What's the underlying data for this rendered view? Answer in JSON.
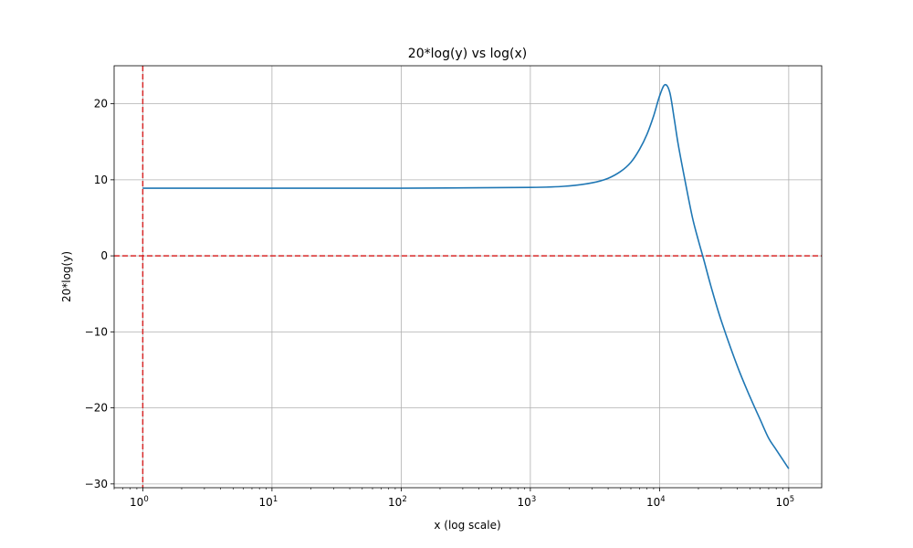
{
  "chart_data": {
    "type": "line",
    "title": "20*log(y) vs log(x)",
    "xlabel": "x (log scale)",
    "ylabel": "20*log(y)",
    "x_scale": "log",
    "xlim": [
      0.6,
      180000
    ],
    "ylim": [
      -30.5,
      25
    ],
    "x_ticks": [
      {
        "value": 1,
        "base": "10",
        "exp": "0"
      },
      {
        "value": 10,
        "base": "10",
        "exp": "1"
      },
      {
        "value": 100,
        "base": "10",
        "exp": "2"
      },
      {
        "value": 1000,
        "base": "10",
        "exp": "3"
      },
      {
        "value": 10000,
        "base": "10",
        "exp": "4"
      },
      {
        "value": 100000,
        "base": "10",
        "exp": "5"
      }
    ],
    "y_ticks": [
      {
        "value": 20,
        "label": "20"
      },
      {
        "value": 10,
        "label": "10"
      },
      {
        "value": 0,
        "label": "0"
      },
      {
        "value": -10,
        "label": "−10"
      },
      {
        "value": -20,
        "label": "−20"
      },
      {
        "value": -30,
        "label": "−30"
      }
    ],
    "grid": true,
    "reference_lines": [
      {
        "orientation": "vertical",
        "x": 1,
        "color": "#d62728",
        "style": "dashed"
      },
      {
        "orientation": "horizontal",
        "y": 0,
        "color": "#d62728",
        "style": "dashed"
      }
    ],
    "series": [
      {
        "color": "#1f77b4",
        "x": [
          1,
          10,
          100,
          1000,
          2000,
          3000,
          4000,
          5000,
          6000,
          7000,
          8000,
          9000,
          10000,
          11000,
          12000,
          13000,
          14000,
          16000,
          18000,
          20000,
          22000,
          25000,
          30000,
          40000,
          50000,
          60000,
          70000,
          80000,
          100000
        ],
        "y": [
          8.9,
          8.9,
          8.9,
          9.0,
          9.2,
          9.6,
          10.2,
          11.1,
          12.3,
          14.0,
          16.0,
          18.4,
          21.0,
          22.5,
          21.5,
          18.0,
          14.5,
          9.3,
          5.0,
          2.0,
          -0.5,
          -4.0,
          -8.5,
          -14.5,
          -18.5,
          -21.5,
          -24.0,
          -25.5,
          -28.0
        ]
      }
    ]
  }
}
